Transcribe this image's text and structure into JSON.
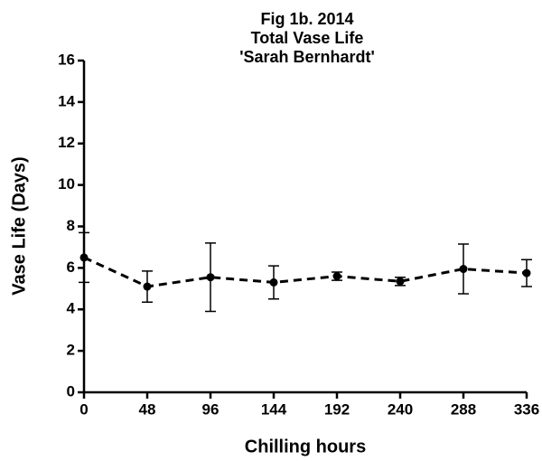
{
  "chart_data": {
    "type": "line",
    "title": [
      "Fig 1b.  2014",
      "Total Vase Life",
      "'Sarah Bernhardt'"
    ],
    "xlabel": "Chilling hours",
    "ylabel": "Vase Life (Days)",
    "x": [
      0,
      48,
      96,
      144,
      192,
      240,
      288,
      336
    ],
    "series": [
      {
        "color": "#000000",
        "values": [
          6.5,
          5.1,
          5.55,
          5.3,
          5.6,
          5.35,
          5.95,
          5.75
        ],
        "errors": [
          1.2,
          0.75,
          1.65,
          0.8,
          0.2,
          0.2,
          1.2,
          0.65
        ]
      }
    ],
    "xlim": [
      0,
      336
    ],
    "xticks": [
      0,
      48,
      96,
      144,
      192,
      240,
      288,
      336
    ],
    "ylim": [
      0,
      16
    ],
    "yticks": [
      0,
      2,
      4,
      6,
      8,
      10,
      12,
      14,
      16
    ],
    "line_style": "dashed",
    "grid": false
  }
}
